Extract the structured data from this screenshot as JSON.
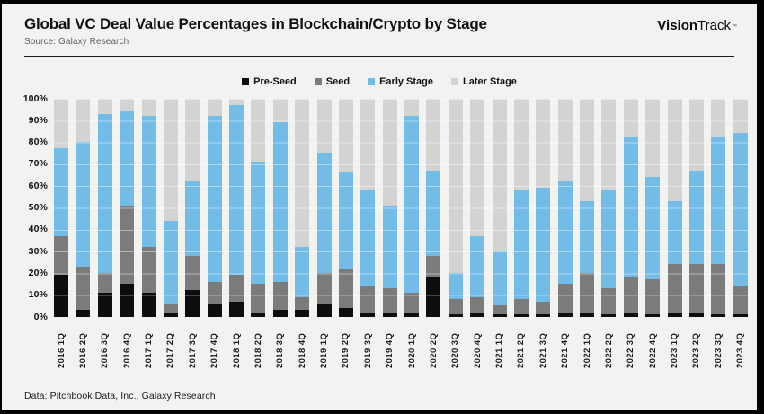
{
  "header": {
    "title": "Global VC Deal Value Percentages in Blockchain/Crypto by Stage",
    "source": "Source: Galaxy Research",
    "logo_bold": "Vision",
    "logo_regular": "Track",
    "logo_tm": "™"
  },
  "footer": {
    "text": "Data: Pitchbook Data, Inc., Galaxy Research"
  },
  "chart_data": {
    "type": "bar",
    "stacked": true,
    "stacking": "percent",
    "title": "Global VC Deal Value Percentages in Blockchain/Crypto by Stage",
    "xlabel": "",
    "ylabel": "",
    "ylim": [
      0,
      100
    ],
    "grid": true,
    "legend_position": "top",
    "y_ticks": [
      "100%",
      "90%",
      "80%",
      "70%",
      "60%",
      "50%",
      "40%",
      "30%",
      "20%",
      "10%",
      "0%"
    ],
    "categories": [
      "2016 1Q",
      "2016 2Q",
      "2016 3Q",
      "2016 4Q",
      "2017 1Q",
      "2017 2Q",
      "2017 3Q",
      "2017 4Q",
      "2018 1Q",
      "2018 2Q",
      "2018 3Q",
      "2018 4Q",
      "2019 1Q",
      "2019 2Q",
      "2019 3Q",
      "2019 4Q",
      "2020 1Q",
      "2020 2Q",
      "2020 3Q",
      "2020 4Q",
      "2021 1Q",
      "2021 2Q",
      "2021 3Q",
      "2021 4Q",
      "2022 1Q",
      "2022 2Q",
      "2022 3Q",
      "2022 4Q",
      "2023 1Q",
      "2023 2Q",
      "2023 3Q",
      "2023 4Q"
    ],
    "series": [
      {
        "name": "Pre-Seed",
        "color": "#0d0d0d",
        "values": [
          19,
          3,
          11,
          15,
          11,
          2,
          12,
          6,
          7,
          2,
          3,
          3,
          6,
          4,
          2,
          2,
          2,
          18,
          1,
          2,
          1,
          1,
          1,
          2,
          2,
          1,
          2,
          1,
          2,
          2,
          1,
          1
        ]
      },
      {
        "name": "Seed",
        "color": "#7b7b7b",
        "values": [
          18,
          20,
          9,
          36,
          21,
          4,
          16,
          10,
          12,
          13,
          13,
          6,
          14,
          18,
          12,
          11,
          9,
          10,
          7,
          7,
          4,
          7,
          6,
          13,
          18,
          12,
          16,
          16,
          22,
          22,
          23,
          13
        ]
      },
      {
        "name": "Early Stage",
        "color": "#73bce8",
        "values": [
          40,
          57,
          73,
          43,
          60,
          38,
          34,
          76,
          78,
          56,
          73,
          23,
          55,
          44,
          44,
          38,
          81,
          39,
          12,
          28,
          25,
          50,
          52,
          47,
          33,
          45,
          64,
          47,
          29,
          43,
          58,
          70
        ]
      },
      {
        "name": "Later Stage",
        "color": "#d3d3d2",
        "values": [
          23,
          20,
          7,
          6,
          8,
          56,
          38,
          8,
          3,
          29,
          11,
          68,
          25,
          34,
          42,
          49,
          8,
          33,
          80,
          63,
          70,
          42,
          41,
          38,
          47,
          42,
          18,
          36,
          47,
          33,
          18,
          16
        ]
      }
    ]
  },
  "colors": {
    "page_bg": "#f2f2f1",
    "frame": "#000000",
    "pre_seed": "#0d0d0d",
    "seed": "#7b7b7b",
    "early_stage": "#73bce8",
    "later_stage": "#d3d3d2"
  }
}
